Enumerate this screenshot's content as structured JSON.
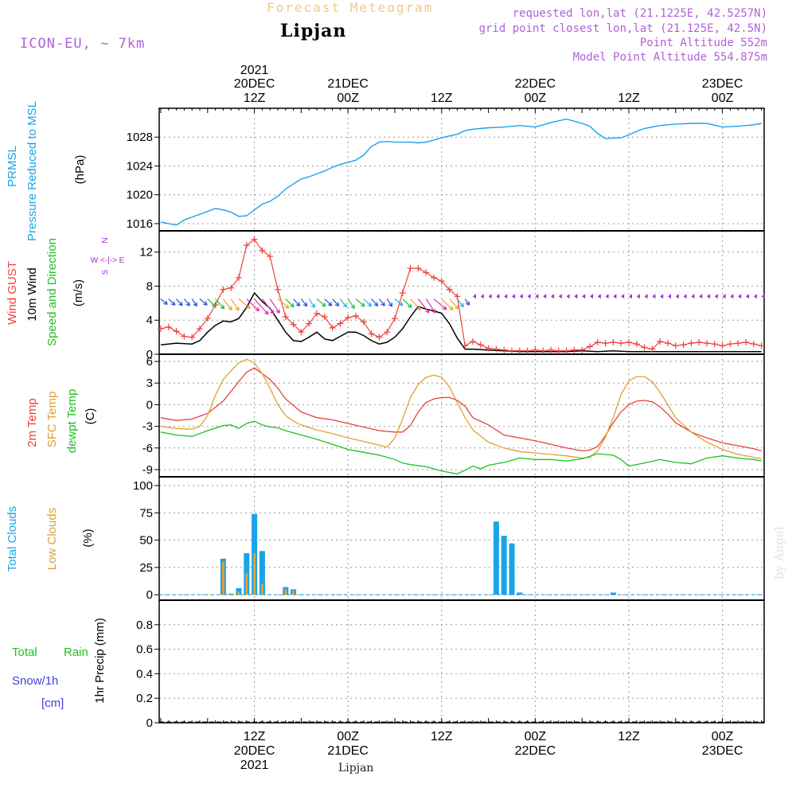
{
  "header": {
    "title_faint": "Forecast Meteogram",
    "location": "Lipjan",
    "model": "ICON-EU, ~ 7km",
    "requested": "requested lon,lat (21.1225E, 42.5257N)",
    "grid_point": "grid point closest lon,lat (21.125E, 42.5N)",
    "point_altitude": "Point Altitude 552m",
    "model_altitude": "Model Point Altitude 554.875m",
    "credit": "by Angel",
    "footer_location": "Lipjan"
  },
  "colors": {
    "pressure": "#1aa3e8",
    "gust": "#f04040",
    "wind10m": "#000000",
    "wind_dir_purple": "#a030d0",
    "temp2m": "#e84040",
    "sfc_temp": "#e0a030",
    "dewpoint": "#20c020",
    "total_clouds": "#1aa3e8",
    "low_clouds": "#e0a030",
    "rain": "#20c020",
    "snow": "#4040e0"
  },
  "chart_data": [
    {
      "type": "line",
      "panel": "pressure",
      "labels": [
        "PRMSL",
        "Pressure Reduced to MSL",
        "(hPa)"
      ],
      "unit": "hPa",
      "x_unit": "hours since 2021-12-20 00Z",
      "ylim": [
        1015,
        1032
      ],
      "yticks": [
        1016,
        1020,
        1024,
        1028
      ],
      "series": [
        {
          "name": "PRMSL",
          "x": [
            0,
            2,
            3,
            5,
            7,
            8,
            9,
            10,
            11,
            12,
            13,
            14,
            15,
            16,
            17,
            18,
            19,
            20,
            21,
            22,
            23,
            24,
            25,
            26,
            27,
            28,
            29,
            30,
            31,
            32,
            33,
            34,
            35,
            36,
            38,
            39,
            40,
            42,
            44,
            46,
            48,
            50,
            52,
            54,
            55,
            56,
            57,
            59,
            60,
            61,
            62,
            63,
            64,
            66,
            68,
            70,
            72,
            74,
            76,
            77
          ],
          "y": [
            1016.2,
            1015.8,
            1016.5,
            1017.3,
            1018.1,
            1017.9,
            1017.6,
            1017.0,
            1017.1,
            1017.9,
            1018.7,
            1019.1,
            1019.8,
            1020.8,
            1021.5,
            1022.2,
            1022.5,
            1022.9,
            1023.3,
            1023.8,
            1024.2,
            1024.5,
            1024.8,
            1025.5,
            1026.7,
            1027.3,
            1027.4,
            1027.3,
            1027.3,
            1027.3,
            1027.2,
            1027.3,
            1027.6,
            1027.9,
            1028.4,
            1028.9,
            1029.1,
            1029.3,
            1029.4,
            1029.6,
            1029.4,
            1030.0,
            1030.5,
            1029.9,
            1029.5,
            1028.5,
            1027.8,
            1027.9,
            1028.3,
            1028.8,
            1029.2,
            1029.4,
            1029.6,
            1029.8,
            1029.9,
            1029.9,
            1029.4,
            1029.5,
            1029.7,
            1029.9
          ]
        }
      ]
    },
    {
      "type": "line",
      "panel": "wind",
      "labels": [
        "Wind GUST",
        "10m Wind",
        "Speed and Direction",
        "(m/s)"
      ],
      "compass": {
        "n": "N",
        "s": "S",
        "w": "W",
        "e": "E",
        "row": "W <-|-> E"
      },
      "unit": "m/s",
      "x_unit": "hours since 2021-12-20 00Z",
      "ylim": [
        0,
        14.5
      ],
      "yticks": [
        0,
        4,
        8,
        12
      ],
      "series": [
        {
          "name": "Wind GUST",
          "x": [
            0,
            1,
            2,
            3,
            4,
            5,
            6,
            7,
            8,
            9,
            10,
            11,
            12,
            13,
            14,
            15,
            16,
            17,
            18,
            19,
            20,
            21,
            22,
            23,
            24,
            25,
            26,
            27,
            28,
            29,
            30,
            31,
            32,
            33,
            34,
            35,
            36,
            37,
            38,
            39,
            40,
            41,
            42,
            43,
            44,
            45,
            46,
            47,
            48,
            49,
            50,
            51,
            52,
            53,
            54,
            55,
            56,
            57,
            58,
            59,
            60,
            61,
            62,
            63,
            64,
            65,
            66,
            67,
            68,
            69,
            70,
            71,
            72,
            73,
            74,
            75,
            76,
            77
          ],
          "y": [
            3.0,
            3.2,
            2.7,
            2.1,
            2.0,
            3.0,
            4.2,
            5.8,
            7.6,
            7.8,
            9.0,
            12.8,
            13.5,
            12.2,
            11.5,
            7.6,
            4.4,
            3.5,
            2.6,
            3.6,
            4.8,
            4.4,
            3.1,
            3.6,
            4.3,
            4.5,
            3.8,
            2.4,
            2.0,
            2.6,
            4.2,
            7.2,
            10.1,
            10.1,
            9.6,
            9.0,
            8.6,
            7.6,
            6.8,
            1.0,
            1.5,
            1.1,
            0.7,
            0.6,
            0.5,
            0.4,
            0.4,
            0.4,
            0.5,
            0.4,
            0.5,
            0.4,
            0.4,
            0.5,
            0.5,
            0.9,
            1.4,
            1.3,
            1.4,
            1.3,
            1.4,
            1.2,
            0.8,
            0.6,
            1.5,
            1.3,
            1.0,
            1.1,
            1.3,
            1.4,
            1.3,
            1.2,
            1.0,
            1.2,
            1.3,
            1.4,
            1.2,
            1.0
          ]
        },
        {
          "name": "10m Wind",
          "x": [
            0,
            2,
            4,
            5,
            6,
            7,
            8,
            9,
            10,
            11,
            12,
            13,
            14,
            15,
            16,
            17,
            18,
            19,
            20,
            21,
            22,
            23,
            24,
            25,
            26,
            27,
            28,
            29,
            30,
            31,
            32,
            33,
            34,
            35,
            36,
            37,
            38,
            39,
            40,
            42,
            44,
            46,
            48,
            50,
            52,
            54,
            56,
            58,
            60,
            62,
            64,
            66,
            68,
            70,
            72,
            74,
            76,
            77
          ],
          "y": [
            1.1,
            1.3,
            1.2,
            1.6,
            2.6,
            3.4,
            3.9,
            3.8,
            4.2,
            5.5,
            7.2,
            6.2,
            5.4,
            4.0,
            2.6,
            1.6,
            1.5,
            2.0,
            2.6,
            1.8,
            1.6,
            2.1,
            2.6,
            2.6,
            2.2,
            1.6,
            1.2,
            1.4,
            2.0,
            3.0,
            4.4,
            5.6,
            5.3,
            5.1,
            4.8,
            3.6,
            1.9,
            0.6,
            0.6,
            0.5,
            0.4,
            0.3,
            0.3,
            0.3,
            0.3,
            0.4,
            0.3,
            0.4,
            0.3,
            0.3,
            0.3,
            0.3,
            0.3,
            0.3,
            0.3,
            0.3,
            0.3,
            0.3
          ]
        }
      ]
    },
    {
      "type": "line",
      "panel": "temperature",
      "labels": [
        "2m Temp",
        "SFC Temp",
        "dewpt Temp",
        "(C)"
      ],
      "unit": "C",
      "x_unit": "hours since 2021-12-20 00Z",
      "ylim": [
        -10,
        7
      ],
      "yticks": [
        -9,
        -6,
        -3,
        0,
        3,
        6
      ],
      "series": [
        {
          "name": "2m Temp",
          "x": [
            0,
            2,
            4,
            6,
            8,
            10,
            11,
            12,
            13,
            14,
            15,
            16,
            18,
            20,
            22,
            24,
            26,
            28,
            30,
            31,
            32,
            33,
            34,
            35,
            36,
            37,
            38,
            39,
            40,
            42,
            44,
            46,
            48,
            50,
            52,
            54,
            55,
            56,
            57,
            58,
            59,
            60,
            61,
            62,
            63,
            64,
            65,
            66,
            68,
            70,
            72,
            74,
            76,
            77
          ],
          "y": [
            -1.8,
            -2.2,
            -2.0,
            -1.2,
            0.5,
            3.2,
            4.5,
            5.1,
            4.3,
            3.5,
            2.3,
            0.8,
            -1.0,
            -1.8,
            -2.1,
            -2.6,
            -3.1,
            -3.6,
            -3.8,
            -3.8,
            -2.9,
            -1.0,
            0.3,
            0.8,
            1.0,
            1.0,
            0.6,
            -0.2,
            -1.8,
            -2.8,
            -4.2,
            -4.6,
            -5.0,
            -5.5,
            -6.0,
            -6.4,
            -6.3,
            -5.8,
            -4.3,
            -2.5,
            -1.0,
            0.0,
            0.5,
            0.6,
            0.4,
            -0.3,
            -1.3,
            -2.5,
            -3.8,
            -4.6,
            -5.3,
            -5.7,
            -6.1,
            -6.4
          ]
        },
        {
          "name": "SFC Temp",
          "x": [
            0,
            2,
            4,
            5,
            6,
            7,
            8,
            9,
            10,
            11,
            12,
            13,
            14,
            15,
            16,
            17,
            18,
            20,
            22,
            24,
            26,
            28,
            29,
            30,
            31,
            32,
            33,
            34,
            35,
            36,
            37,
            38,
            39,
            40,
            42,
            44,
            46,
            48,
            50,
            52,
            54,
            55,
            56,
            57,
            58,
            59,
            60,
            61,
            62,
            63,
            64,
            65,
            66,
            68,
            70,
            72,
            74,
            76,
            77
          ],
          "y": [
            -3.0,
            -3.3,
            -3.4,
            -3.0,
            -1.5,
            1.3,
            3.5,
            4.7,
            5.8,
            6.3,
            5.8,
            4.3,
            2.3,
            0.0,
            -1.5,
            -2.3,
            -2.8,
            -3.5,
            -4.0,
            -4.6,
            -5.1,
            -5.6,
            -5.9,
            -4.6,
            -2.0,
            1.0,
            2.8,
            3.8,
            4.1,
            3.8,
            2.5,
            0.3,
            -1.8,
            -3.5,
            -5.2,
            -6.0,
            -6.5,
            -6.7,
            -6.9,
            -7.1,
            -7.4,
            -7.3,
            -6.4,
            -4.5,
            -1.8,
            1.4,
            3.3,
            3.9,
            3.9,
            3.2,
            1.7,
            0.0,
            -1.8,
            -3.8,
            -5.2,
            -6.2,
            -6.9,
            -7.3,
            -7.5
          ]
        },
        {
          "name": "dewpt Temp",
          "x": [
            0,
            2,
            4,
            6,
            8,
            9,
            10,
            11,
            12,
            13,
            14,
            15,
            16,
            18,
            20,
            22,
            24,
            26,
            28,
            30,
            31,
            32,
            34,
            36,
            38,
            39,
            40,
            41,
            42,
            44,
            46,
            48,
            50,
            52,
            54,
            56,
            58,
            59,
            60,
            62,
            64,
            66,
            68,
            70,
            72,
            74,
            76,
            77
          ],
          "y": [
            -3.8,
            -4.2,
            -4.4,
            -3.6,
            -2.9,
            -2.8,
            -3.3,
            -2.6,
            -2.3,
            -2.8,
            -3.1,
            -3.2,
            -3.6,
            -4.2,
            -4.8,
            -5.5,
            -6.2,
            -6.6,
            -7.0,
            -7.6,
            -8.1,
            -8.3,
            -8.6,
            -9.2,
            -9.6,
            -9.1,
            -8.5,
            -8.9,
            -8.4,
            -8.0,
            -7.4,
            -7.6,
            -7.6,
            -7.8,
            -7.5,
            -6.8,
            -7.0,
            -7.6,
            -8.5,
            -8.1,
            -7.6,
            -8.0,
            -8.2,
            -7.4,
            -7.1,
            -7.4,
            -7.6,
            -7.8
          ]
        }
      ]
    },
    {
      "type": "bar",
      "panel": "clouds",
      "labels": [
        "Total Clouds",
        "Low Clouds",
        "(%)"
      ],
      "unit": "%",
      "x_unit": "hours since 2021-12-20 00Z",
      "ylim": [
        -5,
        108
      ],
      "yticks": [
        0,
        25,
        50,
        75,
        100
      ],
      "series": [
        {
          "name": "Total Clouds",
          "x": [
            8,
            9,
            10,
            11,
            12,
            13,
            16,
            17,
            43,
            44,
            45,
            46,
            58
          ],
          "y": [
            33,
            1,
            6,
            38,
            74,
            40,
            7,
            5,
            67,
            54,
            47,
            2,
            2
          ]
        },
        {
          "name": "Low Clouds",
          "x": [
            8,
            9,
            10,
            11,
            12,
            13,
            16,
            17
          ],
          "y": [
            30,
            1,
            3,
            20,
            38,
            10,
            5,
            4
          ]
        }
      ]
    },
    {
      "type": "bar",
      "panel": "precip",
      "labels": [
        "Total",
        "Rain",
        "Snow/1h",
        "[cm]",
        "1hr Precip (mm)"
      ],
      "unit": "mm",
      "ylim": [
        0,
        1
      ],
      "yticks": [
        0,
        0.2,
        0.4,
        0.6,
        0.8
      ],
      "ytick_labels": [
        "0",
        "0.2",
        "0.4",
        "0.6",
        "0.8"
      ],
      "series": [
        {
          "name": "Total",
          "x": [],
          "y": []
        }
      ]
    }
  ],
  "time_axis": {
    "year": "2021",
    "top_ticks": [
      {
        "h": 12,
        "l1": "20DEC",
        "l2": "12Z",
        "l0": "2021"
      },
      {
        "h": 24,
        "l1": "21DEC",
        "l2": "00Z"
      },
      {
        "h": 36,
        "l1": "",
        "l2": "12Z"
      },
      {
        "h": 48,
        "l1": "22DEC",
        "l2": "00Z"
      },
      {
        "h": 60,
        "l1": "",
        "l2": "12Z"
      },
      {
        "h": 72,
        "l1": "23DEC",
        "l2": "00Z"
      }
    ],
    "bottom_ticks": [
      {
        "h": 12,
        "l1": "12Z",
        "l2": "20DEC",
        "l3": "2021"
      },
      {
        "h": 24,
        "l1": "00Z",
        "l2": "21DEC"
      },
      {
        "h": 36,
        "l1": "12Z",
        "l2": ""
      },
      {
        "h": 48,
        "l1": "00Z",
        "l2": "22DEC"
      },
      {
        "h": 60,
        "l1": "12Z",
        "l2": ""
      },
      {
        "h": 72,
        "l1": "00Z",
        "l2": "23DEC"
      }
    ]
  }
}
